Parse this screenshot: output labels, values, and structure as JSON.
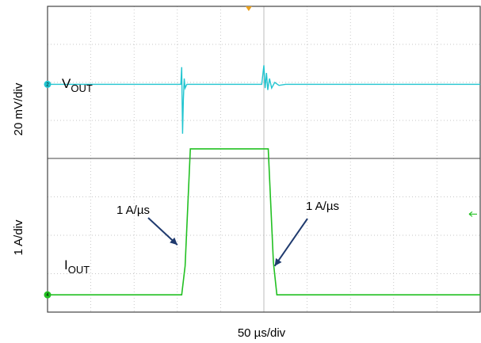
{
  "chart_data": {
    "type": "line",
    "xlabel": "50 µs/div",
    "x_unit": "div",
    "xlim": [
      0,
      10
    ],
    "grid": true,
    "colors": {
      "vout": "#22c5d0",
      "iout": "#22c022",
      "frame": "#444444",
      "grid": "#b5b5b5",
      "arrow": "#1f3a6e",
      "trigger": "#e8a020"
    },
    "panels": [
      {
        "ylabel": "20 mV/div",
        "y_unit": "div",
        "ylim": [
          0,
          4
        ],
        "series": [
          {
            "name": "VOUT",
            "label_main": "V",
            "label_sub": "OUT",
            "channel_marker": "2",
            "x": [
              0,
              3.08,
              3.1,
              3.12,
              3.14,
              3.16,
              3.18,
              3.22,
              3.3,
              4.95,
              5.0,
              5.03,
              5.06,
              5.09,
              5.13,
              5.18,
              5.25,
              5.35,
              5.5,
              10
            ],
            "y": [
              1.95,
              1.95,
              2.4,
              0.65,
              1.55,
              2.1,
              1.85,
              1.95,
              1.95,
              1.95,
              2.45,
              1.85,
              2.25,
              1.8,
              2.1,
              1.85,
              2.0,
              1.92,
              1.95,
              1.95
            ]
          }
        ]
      },
      {
        "ylabel": "1 A/div",
        "y_unit": "div",
        "ylim": [
          0,
          4
        ],
        "series": [
          {
            "name": "IOUT",
            "label_main": "I",
            "label_sub": "OUT",
            "channel_marker": "4",
            "x": [
              0,
              3.1,
              3.18,
              3.3,
              5.1,
              5.22,
              5.3,
              10
            ],
            "y": [
              0.45,
              0.45,
              1.2,
              4.25,
              4.25,
              1.3,
              0.45,
              0.45
            ]
          }
        ],
        "annotations": [
          {
            "text": "1 A/µs",
            "side": "rising"
          },
          {
            "text": "1 A/µs",
            "side": "falling"
          }
        ]
      }
    ]
  }
}
